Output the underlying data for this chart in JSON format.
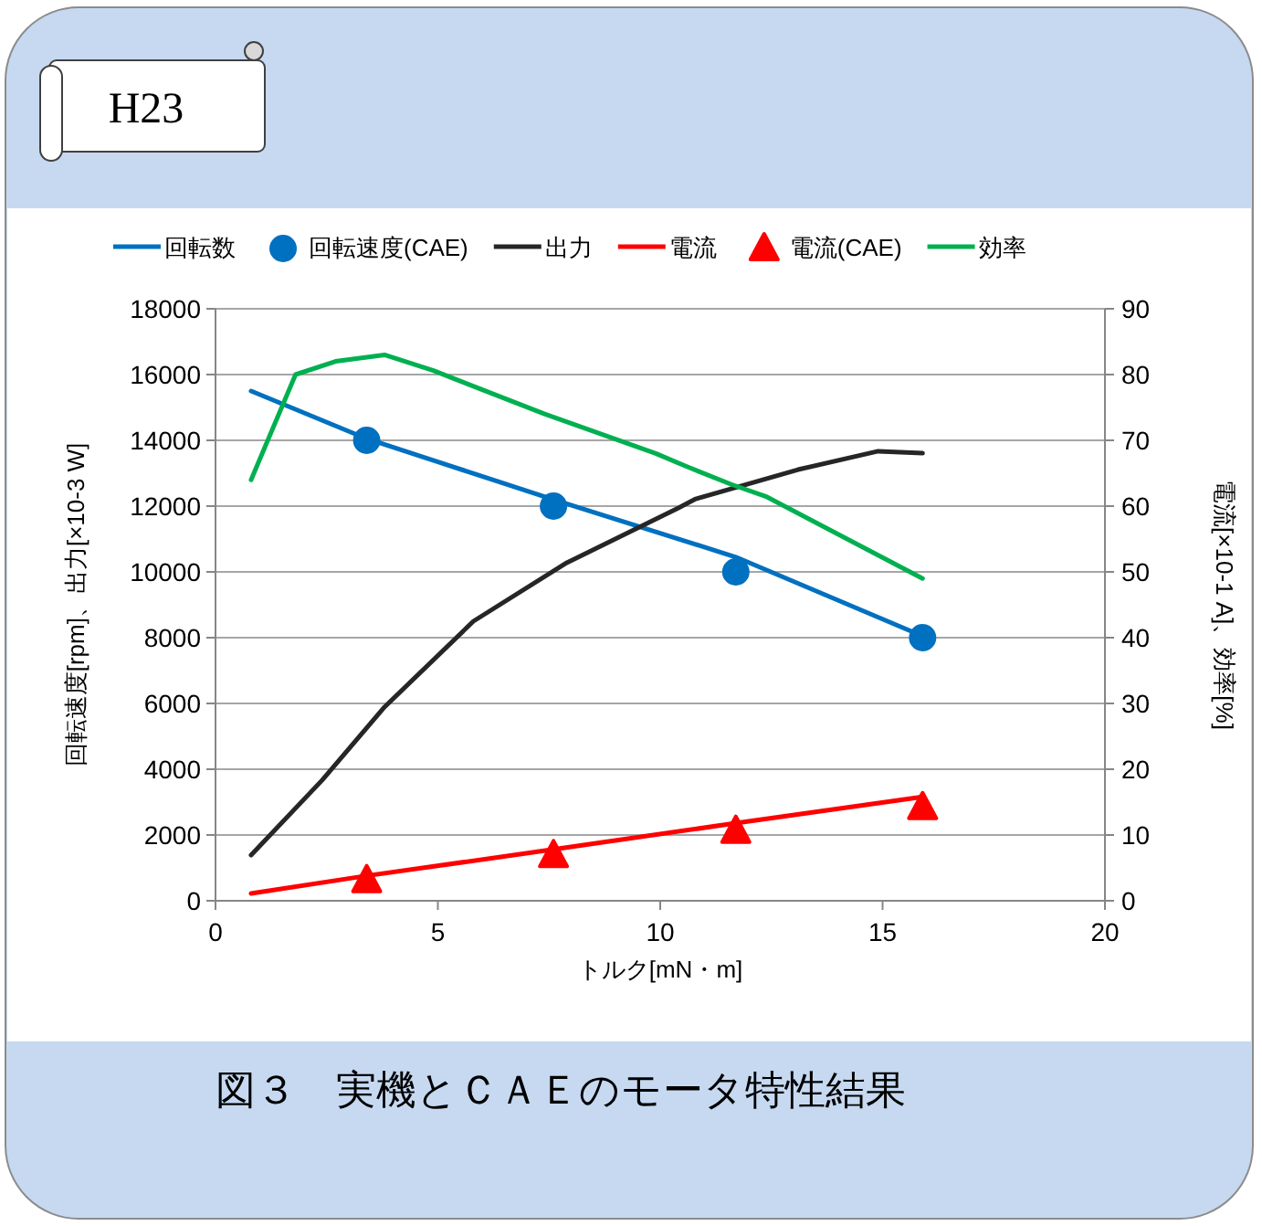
{
  "chart_data": {
    "type": "line",
    "xlabel": "トルク[mN・m]",
    "ylabel": "回転速度[rpm]、出力[×10-3 W]",
    "y2label": "電流[×10-1 A]、効率[%]",
    "annotations": [
      "H23",
      "図３　実機とＣＡＥのモータ特性結果"
    ],
    "xlim": [
      0,
      20
    ],
    "xticks": [
      0,
      5,
      10,
      15,
      20
    ],
    "ylim": [
      0,
      18000
    ],
    "yticks": [
      0,
      2000,
      4000,
      6000,
      8000,
      10000,
      12000,
      14000,
      16000,
      18000
    ],
    "y2lim": [
      0,
      90
    ],
    "y2ticks": [
      0,
      10,
      20,
      30,
      40,
      50,
      60,
      70,
      80,
      90
    ],
    "grid": "y",
    "legend": "top",
    "series": [
      {
        "name": "回転数",
        "type": "line",
        "color": "#0070c0",
        "x": [
          0.8,
          3.4,
          7.6,
          11.7,
          15.9
        ],
        "values": [
          15500,
          14050,
          12200,
          10450,
          8050
        ]
      },
      {
        "name": "回転速度(CAE)",
        "type": "scatter",
        "marker": "circle",
        "color": "#0070c0",
        "x": [
          3.4,
          7.6,
          11.7,
          15.9
        ],
        "values": [
          14000,
          12000,
          10000,
          8000
        ]
      },
      {
        "name": "出力",
        "type": "line",
        "color": "#262626",
        "x": [
          0.8,
          2.4,
          3.8,
          5.8,
          7.9,
          10.4,
          10.8,
          13.1,
          14.9,
          15.9
        ],
        "values": [
          1390,
          3670,
          5890,
          8500,
          10280,
          11940,
          12220,
          13110,
          13670,
          13610
        ]
      },
      {
        "name": "電流",
        "type": "line",
        "color": "#ff0000",
        "axis": "y2",
        "x": [
          0.8,
          3.4,
          7.6,
          11.7,
          15.9
        ],
        "values": [
          1.1,
          3.8,
          7.8,
          11.8,
          15.8
        ]
      },
      {
        "name": "電流(CAE)",
        "type": "scatter",
        "marker": "triangle",
        "color": "#ff0000",
        "axis": "y2",
        "x": [
          3.4,
          7.6,
          11.7,
          15.9
        ],
        "values": [
          3.1,
          6.9,
          10.6,
          14.2
        ]
      },
      {
        "name": "効率",
        "type": "line",
        "color": "#00b050",
        "axis": "y2",
        "x": [
          0.8,
          1.8,
          2.7,
          3.8,
          4.9,
          7.4,
          9.9,
          10.6,
          11.6,
          12.4,
          15.9
        ],
        "values": [
          64,
          80,
          82,
          83,
          80.6,
          74,
          68,
          66,
          63.3,
          61.4,
          49
        ]
      }
    ]
  }
}
